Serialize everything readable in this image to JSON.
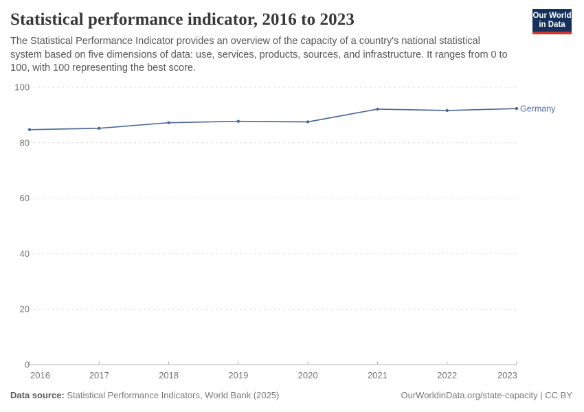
{
  "header": {
    "logo": {
      "line1": "Our World",
      "line2": "in Data"
    }
  },
  "chart_data": {
    "type": "line",
    "title": "Statistical performance indicator, 2016 to 2023",
    "subtitle": "The Statistical Performance Indicator provides an overview of the capacity of a country's national statistical system based on five dimensions of data: use, services, products, sources, and infrastructure. It ranges from 0 to 100, with 100 representing the best score.",
    "x": [
      2016,
      2017,
      2018,
      2019,
      2020,
      2021,
      2022,
      2023
    ],
    "series": [
      {
        "name": "Germany",
        "values": [
          84.7,
          85.2,
          87.2,
          87.7,
          87.5,
          92.1,
          91.6,
          92.3
        ],
        "color": "#4c6a9c"
      }
    ],
    "xlabel": "",
    "ylabel": "",
    "ylim": [
      0,
      100
    ],
    "yticks": [
      0,
      20,
      40,
      60,
      80,
      100
    ],
    "xticks": [
      2016,
      2017,
      2018,
      2019,
      2020,
      2021,
      2022,
      2023
    ],
    "grid": "horizontal-dashed",
    "legend_position": "end-of-line-label"
  },
  "footer": {
    "datasource_label": "Data source:",
    "datasource_value": " Statistical Performance Indicators, World Bank (2025)",
    "attribution": "OurWorldinData.org/state-capacity | CC BY"
  },
  "colors": {
    "accent_line": "#4c6a9c",
    "logo_navy": "#15315b",
    "logo_red": "#d4352d",
    "grid_line": "#dedede",
    "axis_line": "#b3b3b3",
    "tick_label": "#737373",
    "title_text": "#383838",
    "subtitle_text": "#565656"
  }
}
